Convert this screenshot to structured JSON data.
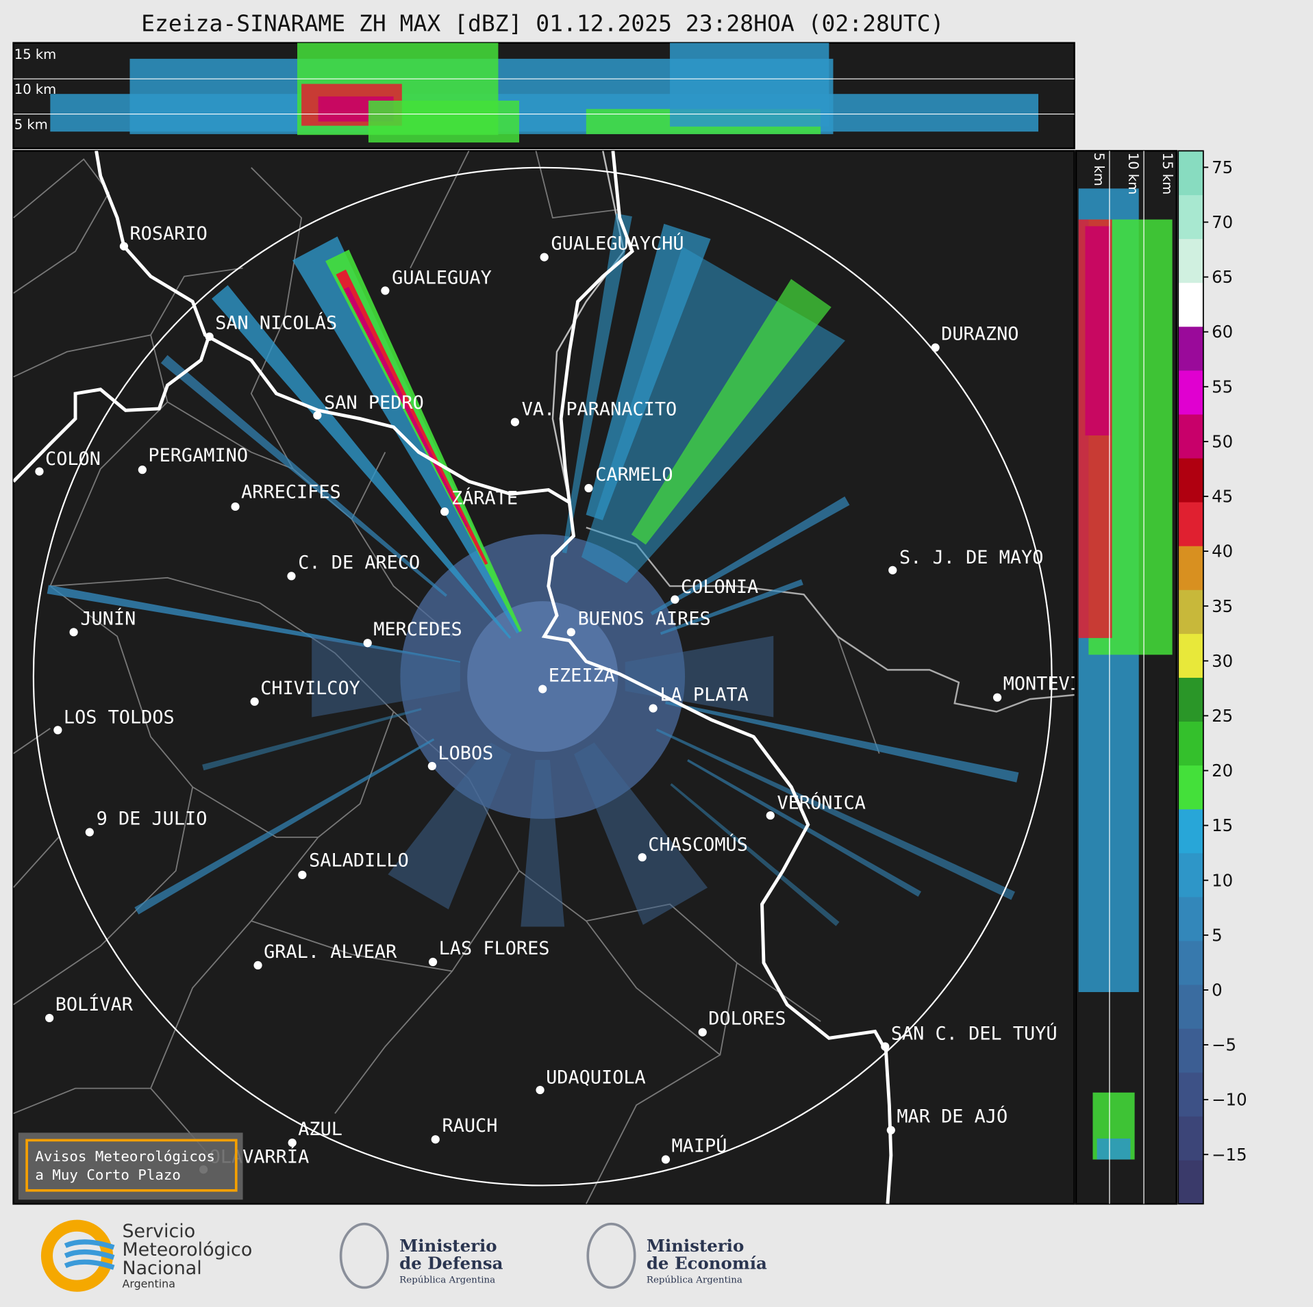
{
  "header": {
    "title": "Ezeiza-SINARAME ZH MAX [dBZ] 01.12.2025 23:28HOA (02:28UTC)"
  },
  "top_panel": {
    "height_labels": [
      "15 km",
      "10 km",
      "5 km"
    ]
  },
  "side_panel": {
    "height_labels": [
      "5 km",
      "10 km",
      "15 km"
    ]
  },
  "map": {
    "cities": [
      {
        "name": "ROSARIO"
      },
      {
        "name": "GUALEGUAYCHÚ"
      },
      {
        "name": "GUALEGUAY"
      },
      {
        "name": "SAN NICOLÁS"
      },
      {
        "name": "DURAZNO"
      },
      {
        "name": "SAN PEDRO"
      },
      {
        "name": "VA. PARANACITO"
      },
      {
        "name": "COLON"
      },
      {
        "name": "PERGAMINO"
      },
      {
        "name": "CARMELO"
      },
      {
        "name": "ARRECIFES"
      },
      {
        "name": "ZÁRATE"
      },
      {
        "name": "S. J. DE MAYO"
      },
      {
        "name": "C. DE ARECO"
      },
      {
        "name": "COLONIA"
      },
      {
        "name": "BUENOS AIRES"
      },
      {
        "name": "JUNÍN"
      },
      {
        "name": "MERCEDES"
      },
      {
        "name": "EZEIZA"
      },
      {
        "name": "MONTEVIDEO"
      },
      {
        "name": "CHIVILCOY"
      },
      {
        "name": "LA PLATA"
      },
      {
        "name": "LOS TOLDOS"
      },
      {
        "name": "LOBOS"
      },
      {
        "name": "VERÓNICA"
      },
      {
        "name": "9 DE JULIO"
      },
      {
        "name": "CHASCOMÚS"
      },
      {
        "name": "SALADILLO"
      },
      {
        "name": "GRAL. ALVEAR"
      },
      {
        "name": "LAS FLORES"
      },
      {
        "name": "BOLÍVAR"
      },
      {
        "name": "DOLORES"
      },
      {
        "name": "SAN C. DEL TUYÚ"
      },
      {
        "name": "UDAQUIOLA"
      },
      {
        "name": "MAR DE AJÓ"
      },
      {
        "name": "RAUCH"
      },
      {
        "name": "AZUL"
      },
      {
        "name": "OLAVARRÍA"
      },
      {
        "name": "MAIPÚ"
      }
    ],
    "warning_box": [
      "Avisos Meteorológicos",
      "a Muy Corto Plazo"
    ]
  },
  "colorbar": {
    "clim": [
      -19.5,
      76.5
    ],
    "ticks": [
      75,
      70,
      65,
      60,
      55,
      50,
      45,
      40,
      35,
      30,
      25,
      20,
      15,
      10,
      5,
      0,
      {
        "value": -5,
        "label": "−5"
      },
      {
        "value": -10,
        "label": "−10"
      },
      {
        "value": -15,
        "label": "−15"
      }
    ],
    "colors": [
      "#3a3a6a",
      "#3c4578",
      "#3d5186",
      "#3c5e93",
      "#3a6ca0",
      "#3779ad",
      "#3387ba",
      "#2e96c8",
      "#28a6d8",
      "#44e03a",
      "#34c02c",
      "#2a9628",
      "#e8e83a",
      "#c8b83a",
      "#d89020",
      "#e02030",
      "#b00010",
      "#c8006a",
      "#e000d0",
      "#9a0a9a",
      "#ffffff",
      "#d0f0e0",
      "#a8e8d0",
      "#88dcc0"
    ]
  },
  "footer": {
    "smn": [
      "Servicio",
      "Meteorológico",
      "Nacional",
      "Argentina"
    ],
    "defensa": [
      "Ministerio",
      "de Defensa",
      "República Argentina"
    ],
    "economia": [
      "Ministerio",
      "de Economía",
      "República Argentina"
    ]
  }
}
